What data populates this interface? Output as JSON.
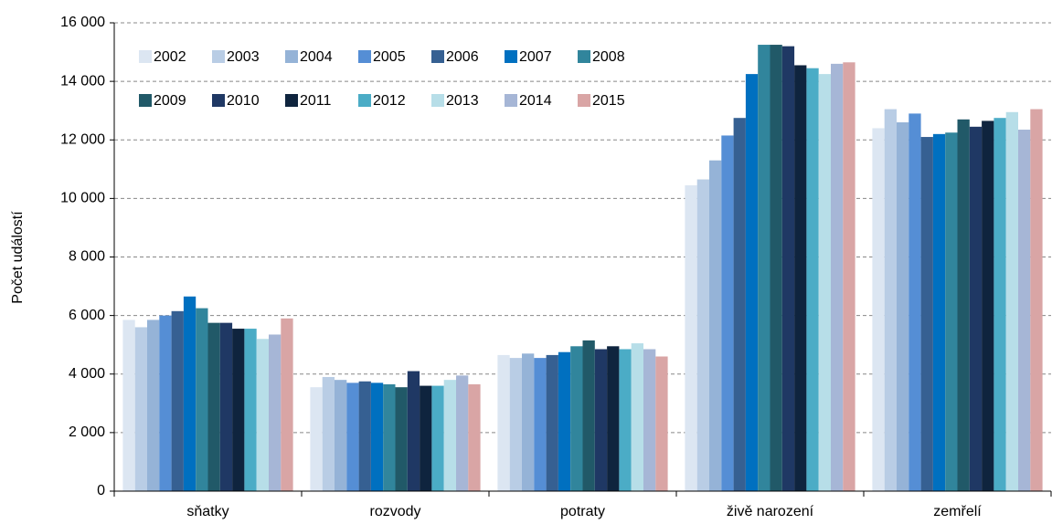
{
  "chart_data": {
    "type": "bar",
    "y_label": "Počet událostí",
    "categories": [
      "sňatky",
      "rozvody",
      "potraty",
      "živě narození",
      "zemřelí"
    ],
    "series": [
      {
        "name": "2002",
        "color": "#dce6f2",
        "values": [
          5850,
          3550,
          4650,
          10450,
          12400
        ]
      },
      {
        "name": "2003",
        "color": "#b9cde5",
        "values": [
          5600,
          3900,
          4550,
          10650,
          13050
        ]
      },
      {
        "name": "2004",
        "color": "#95b3d7",
        "values": [
          5850,
          3800,
          4700,
          11300,
          12600
        ]
      },
      {
        "name": "2005",
        "color": "#558ed5",
        "values": [
          6000,
          3700,
          4550,
          12150,
          12900
        ]
      },
      {
        "name": "2006",
        "color": "#366092",
        "values": [
          6150,
          3750,
          4650,
          12750,
          12100
        ]
      },
      {
        "name": "2007",
        "color": "#0070c0",
        "values": [
          6650,
          3700,
          4750,
          14250,
          12200
        ]
      },
      {
        "name": "2008",
        "color": "#31859c",
        "values": [
          6250,
          3650,
          4950,
          15250,
          12250
        ]
      },
      {
        "name": "2009",
        "color": "#215968",
        "values": [
          5750,
          3550,
          5150,
          15250,
          12700
        ]
      },
      {
        "name": "2010",
        "color": "#1f3864",
        "values": [
          5750,
          4100,
          4850,
          15200,
          12450
        ]
      },
      {
        "name": "2011",
        "color": "#0f243e",
        "values": [
          5550,
          3600,
          4950,
          14550,
          12650
        ]
      },
      {
        "name": "2012",
        "color": "#4bacc6",
        "values": [
          5550,
          3600,
          4850,
          14450,
          12750
        ]
      },
      {
        "name": "2013",
        "color": "#b7dee8",
        "values": [
          5200,
          3800,
          5050,
          14250,
          12950
        ]
      },
      {
        "name": "2014",
        "color": "#a6b6d6",
        "values": [
          5350,
          3950,
          4850,
          14600,
          12350
        ]
      },
      {
        "name": "2015",
        "color": "#d9a5a5",
        "values": [
          5900,
          3650,
          4600,
          14650,
          13050
        ]
      }
    ],
    "ylim": [
      0,
      16000
    ],
    "yticks": [
      0,
      {
        "value": 2000,
        "label": "2 000"
      },
      {
        "value": 4000,
        "label": "4 000"
      },
      {
        "value": 6000,
        "label": "6 000"
      },
      {
        "value": 8000,
        "label": "8 000"
      },
      {
        "value": 10000,
        "label": "10 000"
      },
      {
        "value": 12000,
        "label": "12 000"
      },
      {
        "value": 14000,
        "label": "14 000"
      },
      {
        "value": 16000,
        "label": "16 000"
      }
    ],
    "grid": true,
    "legend": "top-left"
  }
}
